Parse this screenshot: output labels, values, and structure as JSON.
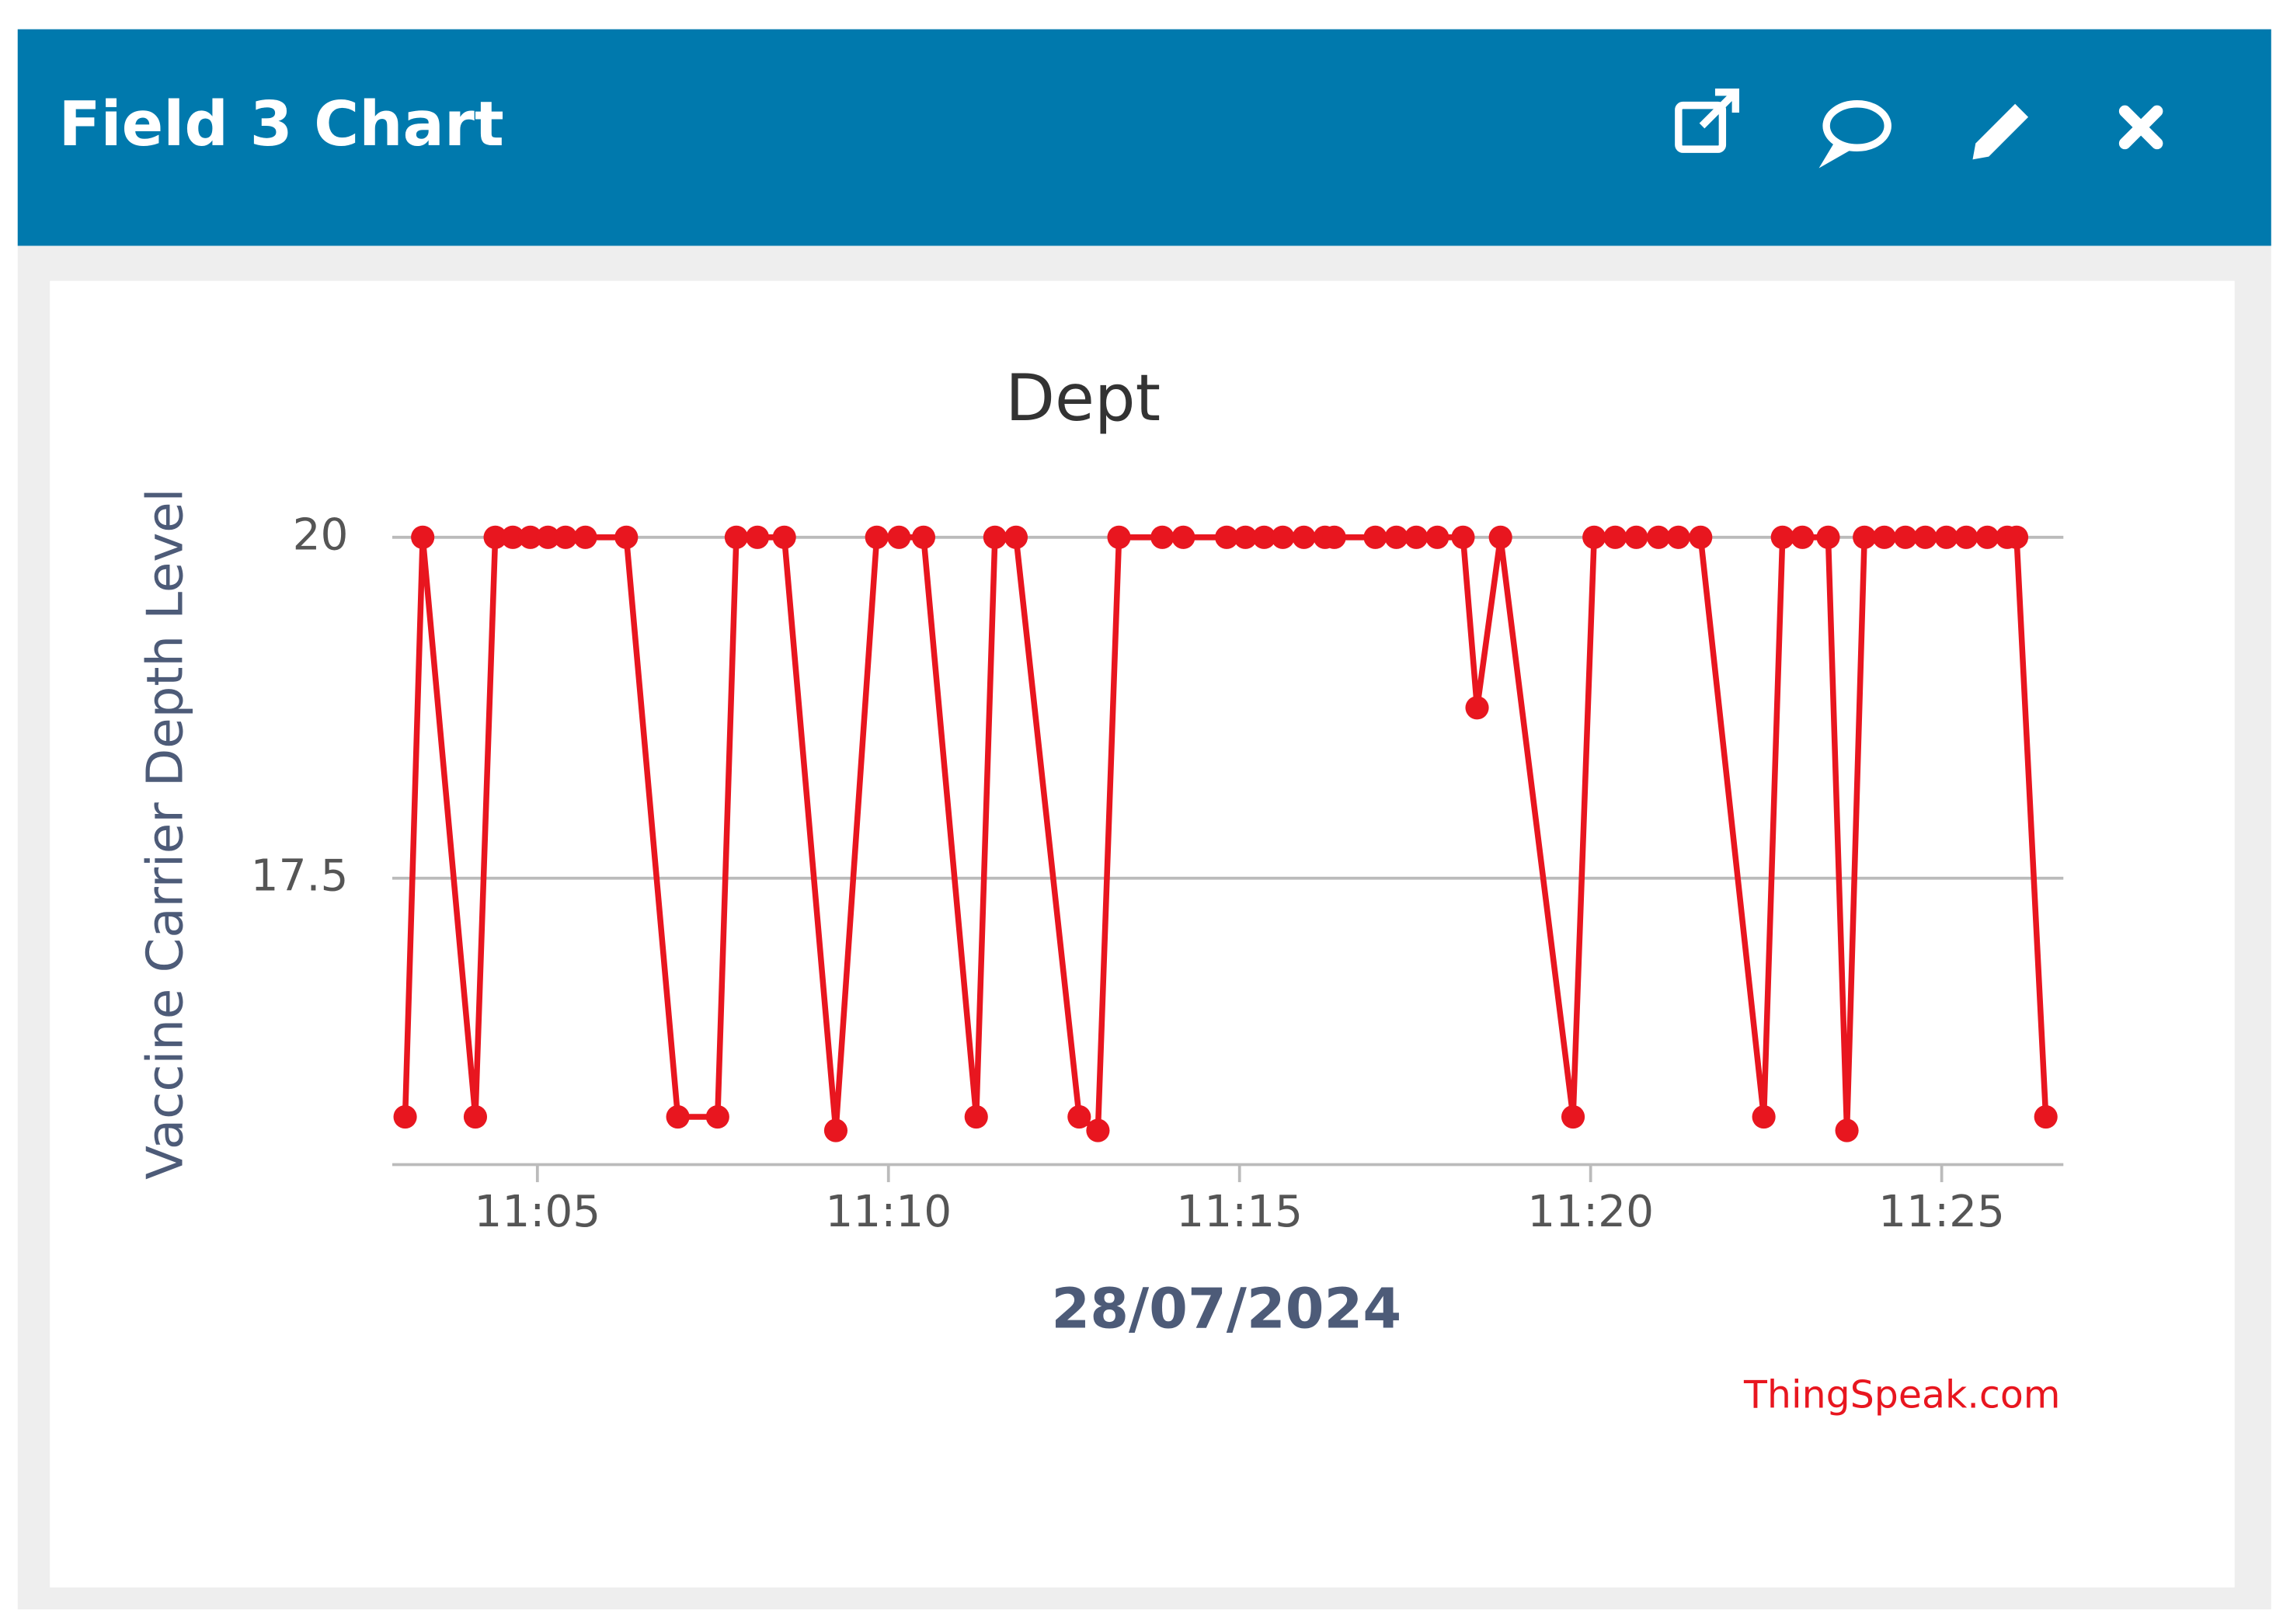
{
  "header": {
    "title": "Field 3 Chart"
  },
  "chart_data": {
    "type": "line",
    "title": "Dept",
    "x_label": "28/07/2024",
    "y_label": "Vaccine Carrier Depth Level",
    "x": [
      "11:03:07",
      "11:03:22",
      "11:04:07",
      "11:04:24",
      "11:04:39",
      "11:04:54",
      "11:05:09",
      "11:05:24",
      "11:05:41",
      "11:06:16",
      "11:07:00",
      "11:07:34",
      "11:07:50",
      "11:08:08",
      "11:08:31",
      "11:09:15",
      "11:09:50",
      "11:10:09",
      "11:10:30",
      "11:11:15",
      "11:11:31",
      "11:11:49",
      "11:12:43",
      "11:12:59",
      "11:13:17",
      "11:13:54",
      "11:14:12",
      "11:14:49",
      "11:15:05",
      "11:15:21",
      "11:15:37",
      "11:15:55",
      "11:16:13",
      "11:16:21",
      "11:16:56",
      "11:17:14",
      "11:17:31",
      "11:17:49",
      "11:18:11",
      "11:18:23",
      "11:18:43",
      "11:19:45",
      "11:20:03",
      "11:20:21",
      "11:20:39",
      "11:20:58",
      "11:21:15",
      "11:21:34",
      "11:22:28",
      "11:22:44",
      "11:23:01",
      "11:23:23",
      "11:23:39",
      "11:23:54",
      "11:24:11",
      "11:24:29",
      "11:24:46",
      "11:25:04",
      "11:25:21",
      "11:25:39",
      "11:25:56",
      "11:26:04",
      "11:26:29"
    ],
    "series": [
      {
        "name": "Dept",
        "color": "#e8161f",
        "values": [
          15.75,
          20,
          15.75,
          20,
          20,
          20,
          20,
          20,
          20,
          20,
          15.75,
          15.75,
          20,
          20,
          20,
          15.65,
          20,
          20,
          20,
          15.75,
          20,
          20,
          15.75,
          15.65,
          20,
          20,
          20,
          20,
          20,
          20,
          20,
          20,
          20,
          20,
          20,
          20,
          20,
          20,
          20,
          18.75,
          20,
          15.75,
          20,
          20,
          20,
          20,
          20,
          20,
          15.75,
          20,
          20,
          20,
          15.65,
          20,
          20,
          20,
          20,
          20,
          20,
          20,
          20,
          20,
          15.75
        ]
      }
    ],
    "xlim": [
      "11:02:56",
      "11:26:44"
    ],
    "xticks": [
      "11:05",
      "11:10",
      "11:15",
      "11:20",
      "11:25"
    ],
    "ylim": [
      15.4,
      20.7
    ],
    "yticks": [
      17.5,
      20
    ],
    "grid": true
  },
  "footer": {
    "credit": "ThingSpeak.com"
  }
}
